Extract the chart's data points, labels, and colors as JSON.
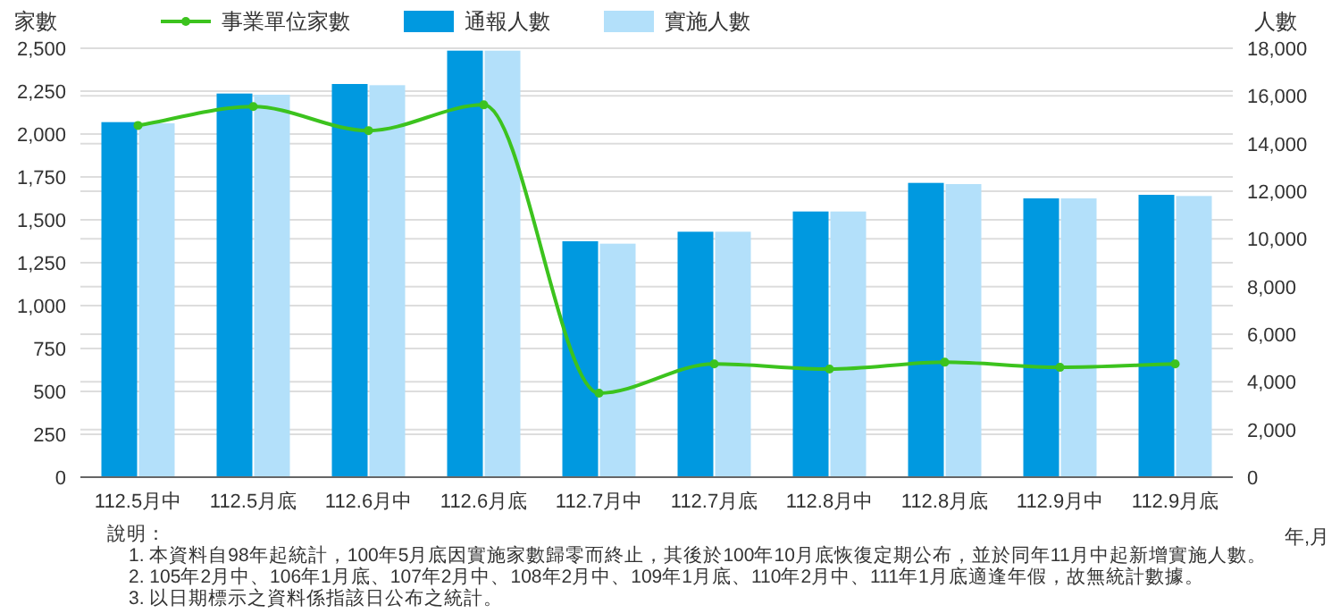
{
  "chart_data": {
    "type": "bar",
    "categories": [
      "112.5月中",
      "112.5月底",
      "112.6月中",
      "112.6月底",
      "112.7月中",
      "112.7月底",
      "112.8月中",
      "112.8月底",
      "112.9月中",
      "112.9月底"
    ],
    "series": [
      {
        "name": "事業單位家數",
        "type": "line",
        "color": "#3cc31e",
        "values": [
          2050,
          2160,
          2020,
          2170,
          490,
          660,
          630,
          670,
          640,
          660
        ]
      },
      {
        "name": "通報人數",
        "color": "#0099e0",
        "axis": "y2",
        "values": [
          14900,
          16100,
          16500,
          17900,
          9900,
          10300,
          11150,
          12350,
          11700,
          11850
        ]
      },
      {
        "name": "實施人數",
        "color": "#b3e0fa",
        "axis": "y2",
        "values": [
          14850,
          16050,
          16450,
          17900,
          9800,
          10300,
          11150,
          12300,
          11700,
          11800
        ]
      }
    ],
    "ylabel": "家數",
    "y2label": "人數",
    "xlabel": "年,月",
    "ylim": [
      0,
      2500
    ],
    "yticks": [
      0,
      250,
      500,
      750,
      {
        "value": 1000,
        "label": "1,000"
      },
      {
        "value": 1250,
        "label": "1,250"
      },
      {
        "value": 1500,
        "label": "1,500"
      },
      {
        "value": 1750,
        "label": "1,750"
      },
      {
        "value": 2000,
        "label": "2,000"
      },
      {
        "value": 2250,
        "label": "2,250"
      },
      {
        "value": 2500,
        "label": "2,500"
      }
    ],
    "y2lim": [
      0,
      18000
    ],
    "y2ticks": [
      0,
      {
        "value": 2000,
        "label": "2,000"
      },
      {
        "value": 4000,
        "label": "4,000"
      },
      {
        "value": 6000,
        "label": "6,000"
      },
      {
        "value": 8000,
        "label": "8,000"
      },
      {
        "value": 10000,
        "label": "10,000"
      },
      {
        "value": 12000,
        "label": "12,000"
      },
      {
        "value": 14000,
        "label": "14,000"
      },
      {
        "value": 16000,
        "label": "16,000"
      },
      {
        "value": 18000,
        "label": "18,000"
      }
    ],
    "grid": true,
    "legend": "top left",
    "marker": "circle",
    "annotations": [
      "說明：",
      "1. 本資料自98年起統計，100年5月底因實施家數歸零而終止，其後於100年10月底恢復定期公布，並於同年11月中起新增實施人數。",
      "2. 105年2月中、106年1月底、107年2月中、108年2月中、109年1月底、110年2月中、111年1月底適逢年假，故無統計數據。",
      "3. 以日期標示之資料係指該日公布之統計。"
    ]
  }
}
